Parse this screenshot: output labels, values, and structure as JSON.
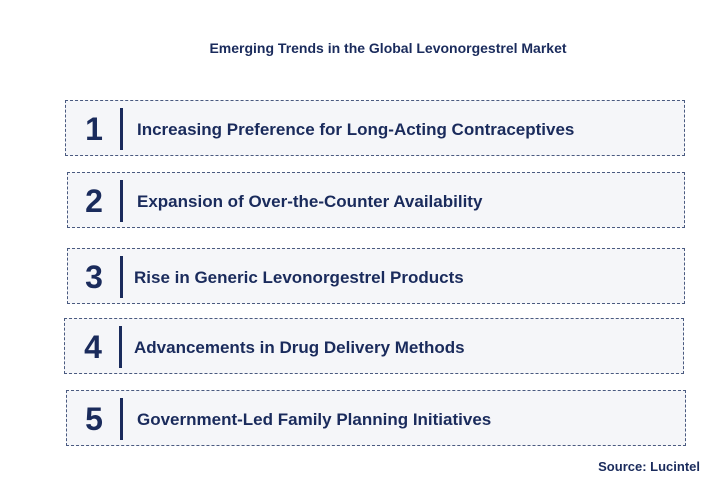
{
  "title": "Emerging Trends in the Global Levonorgestrel Market",
  "trends": [
    {
      "number": "1",
      "label": "Increasing Preference for Long-Acting Contraceptives"
    },
    {
      "number": "2",
      "label": "Expansion of Over-the-Counter Availability"
    },
    {
      "number": "3",
      "label": "Rise in Generic Levonorgestrel Products"
    },
    {
      "number": "4",
      "label": "Advancements in Drug Delivery Methods"
    },
    {
      "number": "5",
      "label": "Government-Led Family Planning Initiatives"
    }
  ],
  "source": "Source: Lucintel",
  "colors": {
    "text": "#1a2b5c",
    "box_border": "#4a5a80",
    "box_fill": "#f5f6f9"
  }
}
